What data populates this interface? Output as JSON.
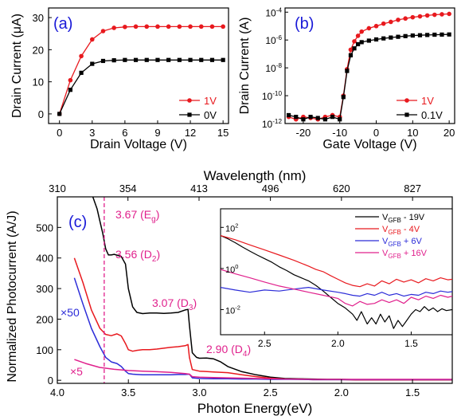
{
  "chart_data": [
    {
      "panel": "(a)",
      "type": "line",
      "xlabel": "Drain Voltage (V)",
      "ylabel": "Drain Current (μA)",
      "xlim": [
        -1,
        15.5
      ],
      "ylim": [
        -3,
        33
      ],
      "xticks": [
        0,
        3,
        6,
        9,
        12,
        15
      ],
      "yticks": [
        0,
        10,
        20,
        30
      ],
      "grid": false,
      "legend_position": "bottom-right",
      "series": [
        {
          "name": "1V",
          "color": "#e8191e",
          "marker": "circle",
          "x": [
            0,
            1,
            2,
            3,
            4,
            5,
            6,
            7,
            8,
            9,
            10,
            11,
            12,
            13,
            14,
            15
          ],
          "y": [
            0,
            10.5,
            18,
            23.2,
            25.8,
            26.8,
            27.1,
            27.2,
            27.2,
            27.2,
            27.2,
            27.2,
            27.2,
            27.2,
            27.2,
            27.2
          ]
        },
        {
          "name": "0V",
          "color": "#000000",
          "marker": "square",
          "x": [
            0,
            1,
            2,
            3,
            4,
            5,
            6,
            7,
            8,
            9,
            10,
            11,
            12,
            13,
            14,
            15
          ],
          "y": [
            0,
            7.5,
            12.8,
            15.6,
            16.5,
            16.7,
            16.8,
            16.8,
            16.8,
            16.8,
            16.8,
            16.8,
            16.8,
            16.8,
            16.8,
            16.8
          ]
        }
      ]
    },
    {
      "panel": "(b)",
      "type": "line",
      "xlabel": "Gate Voltage (V)",
      "ylabel": "Drain Current (A)",
      "xlim": [
        -25,
        21.5
      ],
      "ylim": [
        1e-12,
        0.0002
      ],
      "yscale": "log",
      "xticks": [
        -20,
        -10,
        0,
        10,
        20
      ],
      "ytick_exponents": [
        -12,
        -10,
        -8,
        -6,
        -4
      ],
      "grid": false,
      "legend_position": "bottom-right",
      "series": [
        {
          "name": "1V",
          "color": "#e8191e",
          "marker": "circle",
          "x": [
            -24,
            -22,
            -20,
            -18,
            -16,
            -14,
            -12,
            -10,
            -9,
            -8,
            -7,
            -6,
            -5,
            -4,
            -2,
            0,
            2,
            4,
            6,
            8,
            10,
            12,
            14,
            16,
            18,
            20
          ],
          "y": [
            3e-12,
            2e-12,
            3e-12,
            2.5e-12,
            2e-12,
            3e-12,
            4e-12,
            3e-12,
            1e-10,
            8e-09,
            2e-07,
            8e-07,
            2e-06,
            4e-06,
            7e-06,
            1e-05,
            1.5e-05,
            2e-05,
            2.8e-05,
            3.5e-05,
            4.3e-05,
            5e-05,
            5.8e-05,
            6.5e-05,
            7e-05,
            7.5e-05
          ]
        },
        {
          "name": "0.1V",
          "color": "#000000",
          "marker": "square",
          "x": [
            -24,
            -22,
            -20,
            -18,
            -16,
            -14,
            -12,
            -10,
            -9,
            -8,
            -7,
            -6,
            -5,
            -4,
            -2,
            0,
            2,
            4,
            6,
            8,
            10,
            12,
            14,
            16,
            18,
            20
          ],
          "y": [
            4e-12,
            3e-12,
            2e-12,
            3e-12,
            2.5e-12,
            2e-12,
            3e-12,
            2e-12,
            8e-11,
            6e-09,
            8e-08,
            2.5e-07,
            5e-07,
            7e-07,
            9e-07,
            1.1e-06,
            1.3e-06,
            1.5e-06,
            1.7e-06,
            1.9e-06,
            2.1e-06,
            2.2e-06,
            2.3e-06,
            2.4e-06,
            2.45e-06,
            2.5e-06
          ]
        }
      ]
    },
    {
      "panel": "(c)",
      "type": "line",
      "xlabel": "Photon Energy(eV)",
      "ylabel": "Normalized Photocurrent (A/J)",
      "top_xlabel": "Wavelength (nm)",
      "xlim": [
        4.0,
        1.22
      ],
      "ylim": [
        -10,
        600
      ],
      "xticks": [
        4.0,
        3.5,
        3.0,
        2.5,
        2.0,
        1.5
      ],
      "yticks": [
        0,
        100,
        200,
        300,
        400,
        500
      ],
      "top_xticks": [
        310,
        354,
        413,
        496,
        620,
        827
      ],
      "grid": false,
      "reference_line": {
        "x": 3.67,
        "color": "#e0208c",
        "style": "dashed"
      },
      "annotations": [
        {
          "text": "3.67 (E",
          "sub": "g",
          "tail": ")",
          "x": 3.67,
          "y": 540
        },
        {
          "text": "3.56 (D",
          "sub": "2",
          "tail": ")",
          "x": 3.56,
          "y": 440
        },
        {
          "text": "3.07 (D",
          "sub": "3",
          "tail": ")",
          "x": 3.07,
          "y": 270
        },
        {
          "text": "2.90 (D",
          "sub": "4",
          "tail": ")",
          "x": 2.9,
          "y": 130
        }
      ],
      "multipliers": [
        {
          "text": "×50",
          "color": "#2c2cd8"
        },
        {
          "text": "×5",
          "color": "#e0208c"
        }
      ],
      "series": [
        {
          "name": "black",
          "color": "#000000",
          "x": [
            3.75,
            3.72,
            3.7,
            3.68,
            3.66,
            3.64,
            3.62,
            3.6,
            3.55,
            3.52,
            3.5,
            3.47,
            3.44,
            3.4,
            3.35,
            3.3,
            3.25,
            3.2,
            3.15,
            3.1,
            3.08,
            3.07,
            3.05,
            3.02,
            3.0,
            2.95,
            2.9,
            2.85,
            2.8,
            2.7,
            2.6,
            2.5,
            2.4,
            2.3,
            2.2,
            2.1,
            2.0,
            1.9,
            1.8,
            1.7,
            1.6,
            1.5,
            1.4,
            1.3,
            1.22
          ],
          "y": [
            600,
            560,
            520,
            480,
            430,
            410,
            410,
            412,
            405,
            380,
            300,
            240,
            222,
            218,
            220,
            220,
            219,
            220,
            222,
            230,
            232,
            180,
            90,
            75,
            72,
            73,
            70,
            60,
            45,
            28,
            18,
            10,
            6,
            5,
            4,
            3,
            3,
            2,
            2,
            2,
            2,
            2,
            2,
            2,
            2
          ]
        },
        {
          "name": "red",
          "color": "#e8191e",
          "x": [
            3.88,
            3.82,
            3.76,
            3.7,
            3.66,
            3.62,
            3.58,
            3.55,
            3.52,
            3.5,
            3.47,
            3.44,
            3.4,
            3.35,
            3.3,
            3.25,
            3.2,
            3.15,
            3.1,
            3.08,
            3.07,
            3.05,
            3.0,
            2.9,
            2.8,
            2.7,
            2.6,
            2.5,
            2.4,
            2.3,
            2.2,
            2.1,
            2.0,
            1.9,
            1.8,
            1.7,
            1.6,
            1.5,
            1.4,
            1.3,
            1.22
          ],
          "y": [
            400,
            320,
            230,
            170,
            150,
            146,
            152,
            145,
            120,
            100,
            95,
            98,
            100,
            100,
            102,
            105,
            108,
            110,
            113,
            117,
            75,
            35,
            30,
            27,
            25,
            18,
            12,
            7,
            4,
            3,
            2,
            2,
            2,
            1,
            1,
            1,
            1,
            1,
            1,
            1,
            1
          ]
        },
        {
          "name": "blue",
          "color": "#2c2cd8",
          "x": [
            3.88,
            3.82,
            3.76,
            3.7,
            3.66,
            3.62,
            3.58,
            3.55,
            3.52,
            3.5,
            3.47,
            3.44,
            3.4,
            3.35,
            3.3,
            3.25,
            3.2,
            3.15,
            3.1,
            3.07,
            3.05,
            3.0,
            2.9,
            2.8,
            2.7,
            2.6,
            2.5,
            2.4,
            2.3,
            2.2,
            2.1,
            2.0,
            1.9,
            1.8,
            1.7,
            1.6,
            1.5,
            1.4,
            1.3,
            1.22
          ],
          "y": [
            335,
            250,
            170,
            110,
            75,
            60,
            55,
            45,
            30,
            22,
            20,
            19,
            18,
            18,
            18,
            18,
            18,
            19,
            19,
            20,
            8,
            6,
            5,
            5,
            4,
            4,
            3,
            3,
            3,
            2,
            2,
            2,
            2,
            2,
            2,
            2,
            2,
            2,
            2,
            2
          ]
        },
        {
          "name": "magenta",
          "color": "#e0208c",
          "x": [
            3.88,
            3.8,
            3.7,
            3.6,
            3.5,
            3.4,
            3.3,
            3.2,
            3.1,
            3.07,
            3.05,
            3.0,
            2.9,
            2.8,
            2.7,
            2.6,
            2.5,
            2.4,
            2.3,
            2.2,
            2.1,
            2.0,
            1.9,
            1.8,
            1.7,
            1.6,
            1.5,
            1.4,
            1.3,
            1.22
          ],
          "y": [
            68,
            55,
            42,
            36,
            32,
            30,
            28,
            26,
            22,
            20,
            12,
            10,
            9,
            8,
            7,
            6,
            5,
            4,
            4,
            3,
            3,
            3,
            3,
            3,
            3,
            3,
            3,
            3,
            3,
            3
          ]
        }
      ],
      "inset": {
        "type": "line",
        "yscale": "log",
        "xlim": [
          2.8,
          1.22
        ],
        "ylim": [
          0.0006,
          800
        ],
        "xticks": [
          2.5,
          2.0,
          1.5
        ],
        "ytick_exponents": [
          -2,
          0,
          2
        ],
        "legend_position": "top-right",
        "series": [
          {
            "name_parts": [
              "V",
              "GFB",
              "  - 19V"
            ],
            "color": "#000000",
            "x": [
              2.8,
              2.75,
              2.7,
              2.65,
              2.6,
              2.55,
              2.5,
              2.45,
              2.4,
              2.35,
              2.3,
              2.25,
              2.2,
              2.15,
              2.1,
              2.05,
              2.0,
              1.95,
              1.9,
              1.87,
              1.84,
              1.8,
              1.77,
              1.74,
              1.71,
              1.68,
              1.65,
              1.62,
              1.59,
              1.56,
              1.53,
              1.5,
              1.47,
              1.44,
              1.41,
              1.38,
              1.35,
              1.32,
              1.29,
              1.26,
              1.22
            ],
            "y": [
              40,
              28,
              18,
              11,
              7,
              4.5,
              3,
              2,
              1.2,
              0.8,
              0.5,
              0.35,
              0.25,
              0.15,
              0.08,
              0.04,
              0.02,
              0.012,
              0.006,
              0.003,
              0.008,
              0.002,
              0.004,
              0.002,
              0.006,
              0.0025,
              0.005,
              0.0012,
              0.003,
              0.0015,
              0.003,
              0.006,
              0.01,
              0.008,
              0.014,
              0.009,
              0.012,
              0.008,
              0.011,
              0.009,
              0.01
            ]
          },
          {
            "name_parts": [
              "V",
              "GFB",
              "  - 4V"
            ],
            "color": "#e8191e",
            "x": [
              2.8,
              2.7,
              2.6,
              2.5,
              2.4,
              2.3,
              2.2,
              2.15,
              2.1,
              2.05,
              2.0,
              1.95,
              1.9,
              1.85,
              1.8,
              1.75,
              1.7,
              1.65,
              1.6,
              1.55,
              1.5,
              1.45,
              1.4,
              1.35,
              1.3,
              1.25,
              1.22
            ],
            "y": [
              40,
              25,
              14,
              8,
              4.5,
              2.5,
              1.3,
              0.9,
              0.7,
              0.45,
              0.3,
              0.2,
              0.15,
              0.13,
              0.18,
              0.14,
              0.25,
              0.18,
              0.3,
              0.22,
              0.28,
              0.2,
              0.32,
              0.25,
              0.35,
              0.28,
              0.3
            ]
          },
          {
            "name_parts": [
              "V",
              "GFB",
              "  + 6V"
            ],
            "color": "#2c2cd8",
            "x": [
              2.8,
              2.7,
              2.6,
              2.5,
              2.4,
              2.3,
              2.2,
              2.1,
              2.0,
              1.95,
              1.9,
              1.85,
              1.8,
              1.75,
              1.7,
              1.65,
              1.6,
              1.55,
              1.5,
              1.45,
              1.4,
              1.35,
              1.3,
              1.25,
              1.22
            ],
            "y": [
              0.12,
              0.09,
              0.07,
              0.09,
              0.08,
              0.1,
              0.12,
              0.09,
              0.07,
              0.06,
              0.05,
              0.045,
              0.06,
              0.05,
              0.07,
              0.05,
              0.06,
              0.045,
              0.055,
              0.05,
              0.07,
              0.06,
              0.08,
              0.07,
              0.075
            ]
          },
          {
            "name_parts": [
              "V",
              "GFB",
              "  + 16V"
            ],
            "color": "#e0208c",
            "x": [
              2.8,
              2.7,
              2.6,
              2.5,
              2.4,
              2.3,
              2.2,
              2.1,
              2.0,
              1.95,
              1.9,
              1.85,
              1.8,
              1.75,
              1.7,
              1.65,
              1.6,
              1.55,
              1.5,
              1.45,
              1.4,
              1.35,
              1.3,
              1.25,
              1.22
            ],
            "y": [
              0.9,
              0.55,
              0.35,
              0.22,
              0.14,
              0.1,
              0.07,
              0.05,
              0.035,
              0.02,
              0.015,
              0.025,
              0.018,
              0.02,
              0.03,
              0.022,
              0.03,
              0.02,
              0.04,
              0.03,
              0.045,
              0.035,
              0.05,
              0.04,
              0.045
            ]
          }
        ]
      }
    }
  ]
}
